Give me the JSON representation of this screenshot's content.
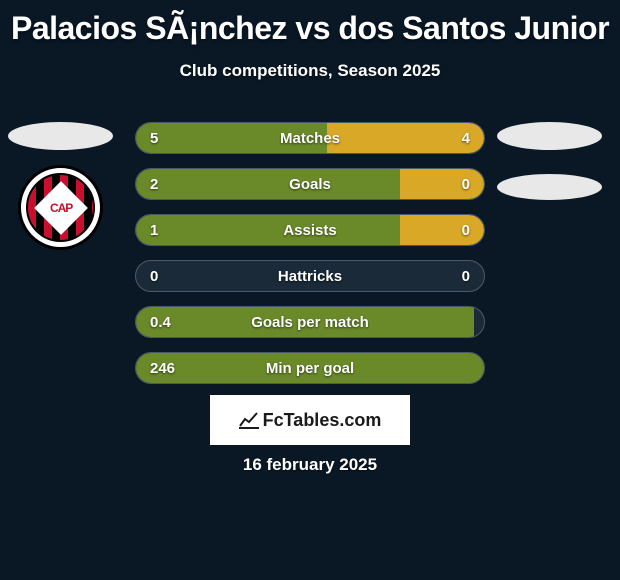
{
  "title": "Palacios SÃ¡nchez vs dos Santos Junior",
  "subtitle": "Club competitions, Season 2025",
  "footer_date": "16 february 2025",
  "fctables_label": "FcTables.com",
  "colors": {
    "left_bar": "#6a8a2a",
    "right_bar": "#d9a826",
    "bar_bg": "#1a2a38",
    "bar_border": "#4a5a68",
    "page_bg": "#0a1826"
  },
  "stats": [
    {
      "label": "Matches",
      "left_val": "5",
      "right_val": "4",
      "left_pct": 55,
      "right_pct": 45
    },
    {
      "label": "Goals",
      "left_val": "2",
      "right_val": "0",
      "left_pct": 76,
      "right_pct": 24
    },
    {
      "label": "Assists",
      "left_val": "1",
      "right_val": "0",
      "left_pct": 76,
      "right_pct": 24
    },
    {
      "label": "Hattricks",
      "left_val": "0",
      "right_val": "0",
      "left_pct": 0,
      "right_pct": 0
    },
    {
      "label": "Goals per match",
      "left_val": "0.4",
      "right_val": "",
      "left_pct": 97,
      "right_pct": 0
    },
    {
      "label": "Min per goal",
      "left_val": "246",
      "right_val": "",
      "left_pct": 100,
      "right_pct": 0
    }
  ],
  "club_badge": {
    "name": "athletico-paranaense-badge",
    "diamond_text": "CAP"
  }
}
